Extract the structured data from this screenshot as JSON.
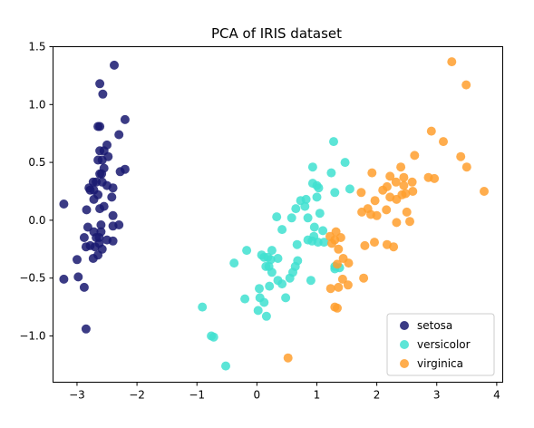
{
  "chart_data": {
    "type": "scatter",
    "title": "PCA of IRIS dataset",
    "xlabel": "",
    "ylabel": "",
    "xlim": [
      -3.4,
      4.1
    ],
    "ylim": [
      -1.4,
      1.5
    ],
    "x_ticks": [
      -3,
      -2,
      -1,
      0,
      1,
      2,
      3,
      4
    ],
    "x_tick_labels": [
      "−3",
      "−2",
      "−1",
      "0",
      "1",
      "2",
      "3",
      "4"
    ],
    "y_ticks": [
      -1.0,
      -0.5,
      0.0,
      0.5,
      1.0,
      1.5
    ],
    "y_tick_labels": [
      "−1.0",
      "−0.5",
      "0.0",
      "0.5",
      "1.0",
      "1.5"
    ],
    "grid": false,
    "legend_position": "bottom-right",
    "series": [
      {
        "name": "setosa",
        "color": "#191970",
        "points": [
          [
            -2.38,
            1.34
          ],
          [
            -2.62,
            1.18
          ],
          [
            -2.57,
            1.09
          ],
          [
            -2.2,
            0.87
          ],
          [
            -2.65,
            0.81
          ],
          [
            -2.62,
            0.81
          ],
          [
            -2.5,
            0.65
          ],
          [
            -2.62,
            0.6
          ],
          [
            -2.55,
            0.6
          ],
          [
            -2.3,
            0.74
          ],
          [
            -2.58,
            0.52
          ],
          [
            -2.65,
            0.52
          ],
          [
            -2.48,
            0.55
          ],
          [
            -2.55,
            0.45
          ],
          [
            -2.59,
            0.4
          ],
          [
            -2.2,
            0.44
          ],
          [
            -2.28,
            0.42
          ],
          [
            -2.62,
            0.4
          ],
          [
            -2.68,
            0.33
          ],
          [
            -2.73,
            0.33
          ],
          [
            -2.58,
            0.33
          ],
          [
            -2.8,
            0.28
          ],
          [
            -2.78,
            0.26
          ],
          [
            -2.72,
            0.26
          ],
          [
            -2.5,
            0.3
          ],
          [
            -2.4,
            0.28
          ],
          [
            -2.65,
            0.22
          ],
          [
            -2.72,
            0.18
          ],
          [
            -2.42,
            0.2
          ],
          [
            -2.55,
            0.12
          ],
          [
            -2.84,
            0.09
          ],
          [
            -3.22,
            0.14
          ],
          [
            -2.62,
            0.1
          ],
          [
            -2.4,
            0.04
          ],
          [
            -2.82,
            -0.06
          ],
          [
            -2.6,
            -0.04
          ],
          [
            -2.72,
            -0.1
          ],
          [
            -2.4,
            -0.05
          ],
          [
            -2.3,
            -0.04
          ],
          [
            -2.6,
            -0.1
          ],
          [
            -2.88,
            -0.15
          ],
          [
            -2.68,
            -0.15
          ],
          [
            -2.63,
            -0.15
          ],
          [
            -2.5,
            -0.17
          ],
          [
            -2.4,
            -0.18
          ],
          [
            -2.78,
            -0.22
          ],
          [
            -2.63,
            -0.2
          ],
          [
            -2.58,
            -0.25
          ],
          [
            -2.85,
            -0.23
          ],
          [
            -2.7,
            -0.23
          ],
          [
            -2.65,
            -0.3
          ],
          [
            -2.73,
            -0.33
          ],
          [
            -3.0,
            -0.34
          ],
          [
            -2.98,
            -0.49
          ],
          [
            -3.22,
            -0.51
          ],
          [
            -2.88,
            -0.58
          ],
          [
            -2.85,
            -0.94
          ]
        ]
      },
      {
        "name": "versicolor",
        "color": "#40E0D0",
        "points": [
          [
            1.28,
            0.68
          ],
          [
            1.47,
            0.5
          ],
          [
            0.93,
            0.46
          ],
          [
            1.24,
            0.41
          ],
          [
            0.93,
            0.32
          ],
          [
            1.0,
            0.3
          ],
          [
            1.03,
            0.28
          ],
          [
            1.55,
            0.27
          ],
          [
            1.3,
            0.24
          ],
          [
            1.0,
            0.2
          ],
          [
            0.73,
            0.17
          ],
          [
            0.8,
            0.12
          ],
          [
            0.65,
            0.1
          ],
          [
            0.82,
            0.18
          ],
          [
            1.05,
            0.06
          ],
          [
            0.85,
            0.02
          ],
          [
            0.58,
            0.02
          ],
          [
            0.33,
            0.03
          ],
          [
            1.1,
            -0.09
          ],
          [
            0.96,
            -0.06
          ],
          [
            0.42,
            -0.08
          ],
          [
            0.95,
            -0.14
          ],
          [
            0.85,
            -0.17
          ],
          [
            0.92,
            -0.18
          ],
          [
            1.02,
            -0.19
          ],
          [
            1.12,
            -0.19
          ],
          [
            0.67,
            -0.21
          ],
          [
            0.25,
            -0.26
          ],
          [
            -0.17,
            -0.26
          ],
          [
            0.08,
            -0.3
          ],
          [
            0.12,
            -0.32
          ],
          [
            0.18,
            -0.32
          ],
          [
            0.23,
            -0.34
          ],
          [
            0.35,
            -0.33
          ],
          [
            0.2,
            -0.4
          ],
          [
            0.15,
            -0.4
          ],
          [
            0.25,
            -0.45
          ],
          [
            0.68,
            -0.35
          ],
          [
            0.64,
            -0.4
          ],
          [
            0.6,
            -0.45
          ],
          [
            0.55,
            -0.5
          ],
          [
            1.3,
            -0.4
          ],
          [
            1.38,
            -0.41
          ],
          [
            1.3,
            -0.42
          ],
          [
            -0.38,
            -0.37
          ],
          [
            0.42,
            -0.55
          ],
          [
            0.35,
            -0.52
          ],
          [
            0.21,
            -0.57
          ],
          [
            0.04,
            -0.59
          ],
          [
            0.05,
            -0.67
          ],
          [
            0.48,
            -0.67
          ],
          [
            0.9,
            -0.52
          ],
          [
            -0.2,
            -0.68
          ],
          [
            0.12,
            -0.71
          ],
          [
            0.02,
            -0.78
          ],
          [
            0.16,
            -0.83
          ],
          [
            -0.91,
            -0.75
          ],
          [
            -0.76,
            -1.0
          ],
          [
            -0.72,
            -1.01
          ],
          [
            -0.52,
            -1.26
          ]
        ]
      },
      {
        "name": "virginica",
        "color": "#FF9F2E",
        "points": [
          [
            3.25,
            1.37
          ],
          [
            3.49,
            1.17
          ],
          [
            2.91,
            0.77
          ],
          [
            3.11,
            0.68
          ],
          [
            3.4,
            0.55
          ],
          [
            2.63,
            0.56
          ],
          [
            3.5,
            0.46
          ],
          [
            2.4,
            0.46
          ],
          [
            1.92,
            0.41
          ],
          [
            2.22,
            0.38
          ],
          [
            2.45,
            0.37
          ],
          [
            2.86,
            0.37
          ],
          [
            2.96,
            0.36
          ],
          [
            2.32,
            0.33
          ],
          [
            2.59,
            0.33
          ],
          [
            2.17,
            0.29
          ],
          [
            2.45,
            0.3
          ],
          [
            2.1,
            0.26
          ],
          [
            1.74,
            0.24
          ],
          [
            2.42,
            0.22
          ],
          [
            2.48,
            0.23
          ],
          [
            2.6,
            0.25
          ],
          [
            3.79,
            0.25
          ],
          [
            2.22,
            0.2
          ],
          [
            2.33,
            0.18
          ],
          [
            1.97,
            0.17
          ],
          [
            1.85,
            0.1
          ],
          [
            1.75,
            0.07
          ],
          [
            2.16,
            0.09
          ],
          [
            2.5,
            0.07
          ],
          [
            1.9,
            0.05
          ],
          [
            2.0,
            0.04
          ],
          [
            2.55,
            -0.01
          ],
          [
            2.33,
            -0.02
          ],
          [
            1.32,
            -0.1
          ],
          [
            1.22,
            -0.14
          ],
          [
            1.4,
            -0.15
          ],
          [
            1.3,
            -0.17
          ],
          [
            1.25,
            -0.2
          ],
          [
            1.96,
            -0.19
          ],
          [
            2.17,
            -0.21
          ],
          [
            1.8,
            -0.22
          ],
          [
            2.28,
            -0.23
          ],
          [
            1.36,
            -0.25
          ],
          [
            1.44,
            -0.33
          ],
          [
            1.34,
            -0.38
          ],
          [
            1.53,
            -0.37
          ],
          [
            1.43,
            -0.51
          ],
          [
            1.78,
            -0.5
          ],
          [
            1.52,
            -0.56
          ],
          [
            1.36,
            -0.58
          ],
          [
            1.23,
            -0.59
          ],
          [
            1.3,
            -0.75
          ],
          [
            1.34,
            -0.76
          ],
          [
            0.52,
            -1.19
          ]
        ]
      }
    ]
  }
}
